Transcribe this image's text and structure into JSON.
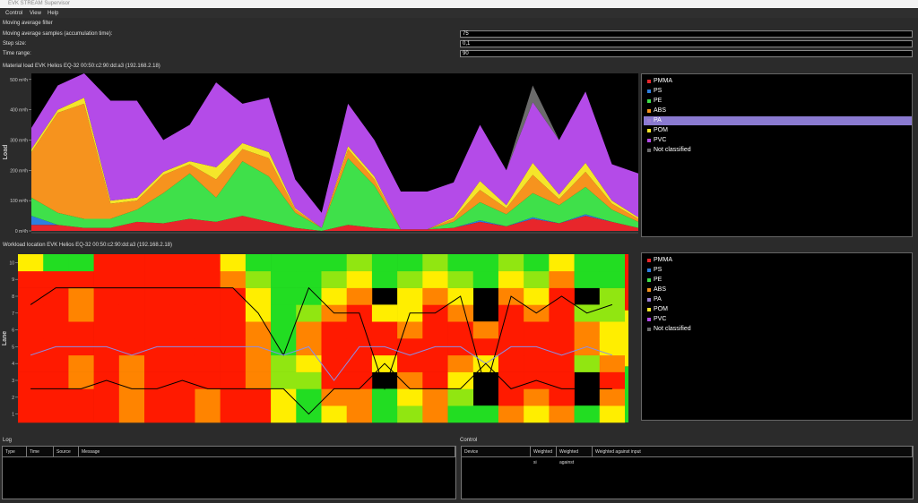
{
  "window": {
    "title": "EVK STREAM Supervisor"
  },
  "menu": [
    "Control",
    "View",
    "Help"
  ],
  "filter": {
    "title": "Moving average filter",
    "fields": [
      {
        "label": "Moving average samples (accumulation time):",
        "value": "75"
      },
      {
        "label": "Step size:",
        "value": "0,1"
      },
      {
        "label": "Time range:",
        "value": "90"
      }
    ]
  },
  "chart_data": [
    {
      "type": "area",
      "stacked": true,
      "title": "Material load EVK Helios EQ-32 00:50:c2:90:dd:a3 (192.168.2.18)",
      "ylabel": "Load",
      "ylim": [
        0,
        520
      ],
      "yticks": [
        {
          "value": 0,
          "label": "0 m³/h"
        },
        {
          "value": 100,
          "label": "100 m³/h"
        },
        {
          "value": 200,
          "label": "200 m³/h"
        },
        {
          "value": 300,
          "label": "300 m³/h"
        },
        {
          "value": 400,
          "label": "400 m³/h"
        },
        {
          "value": 500,
          "label": "500 m³/h"
        }
      ],
      "legend_selected": 4,
      "series": [
        {
          "name": "PMMA",
          "color": "#e8262b",
          "values": [
            20,
            20,
            10,
            10,
            30,
            25,
            40,
            30,
            50,
            30,
            10,
            0,
            20,
            10,
            5,
            5,
            10,
            30,
            15,
            40,
            25,
            50,
            30,
            10
          ]
        },
        {
          "name": "PS",
          "color": "#2d7fe0",
          "values": [
            30,
            0,
            0,
            0,
            0,
            0,
            0,
            0,
            0,
            0,
            0,
            0,
            0,
            0,
            0,
            0,
            0,
            5,
            0,
            5,
            0,
            5,
            0,
            0
          ]
        },
        {
          "name": "PE",
          "color": "#3fe04a",
          "values": [
            60,
            40,
            30,
            30,
            40,
            100,
            150,
            80,
            180,
            150,
            50,
            10,
            220,
            140,
            0,
            0,
            20,
            60,
            40,
            80,
            60,
            90,
            40,
            20
          ]
        },
        {
          "name": "ABS",
          "color": "#f6931e",
          "values": [
            150,
            330,
            380,
            50,
            30,
            60,
            30,
            60,
            40,
            60,
            10,
            0,
            30,
            20,
            0,
            0,
            10,
            40,
            20,
            60,
            20,
            50,
            20,
            10
          ]
        },
        {
          "name": "PA",
          "color": "#9b7fd4",
          "values": [
            0,
            0,
            0,
            0,
            0,
            0,
            0,
            0,
            0,
            0,
            0,
            0,
            0,
            0,
            0,
            0,
            0,
            0,
            0,
            0,
            0,
            0,
            0,
            0
          ]
        },
        {
          "name": "POM",
          "color": "#f5e52a",
          "values": [
            10,
            10,
            20,
            10,
            10,
            10,
            10,
            40,
            20,
            20,
            5,
            0,
            10,
            10,
            0,
            0,
            5,
            30,
            10,
            40,
            15,
            30,
            10,
            5
          ]
        },
        {
          "name": "PVC",
          "color": "#b44be8",
          "values": [
            70,
            80,
            80,
            330,
            320,
            105,
            120,
            280,
            130,
            180,
            95,
            50,
            140,
            120,
            125,
            125,
            115,
            185,
            115,
            200,
            180,
            235,
            120,
            145
          ]
        },
        {
          "name": "Not classified",
          "color": "#6b6b6b",
          "values": [
            0,
            0,
            0,
            0,
            0,
            0,
            0,
            0,
            0,
            0,
            0,
            0,
            0,
            0,
            0,
            0,
            0,
            0,
            0,
            55,
            0,
            0,
            0,
            0
          ]
        }
      ]
    },
    {
      "type": "heatmap",
      "title": "Workload location EVK Helios EQ-32 00:50:c2:90:dd:a3 (192.168.2.18)",
      "ylabel": "Lane",
      "ylim": [
        0.5,
        10.5
      ],
      "yticks": [
        1,
        2,
        3,
        4,
        5,
        6,
        7,
        8,
        9,
        10
      ],
      "zlim": [
        0,
        100
      ],
      "colorscale": [
        "#22dd22",
        "#ffee00",
        "#ff1a00"
      ],
      "z": [
        [
          100,
          100,
          100,
          100,
          100,
          100,
          100,
          100,
          100,
          50
        ],
        [
          100,
          100,
          100,
          100,
          100,
          100,
          100,
          100,
          100,
          0
        ],
        [
          100,
          100,
          75,
          75,
          100,
          100,
          75,
          75,
          100,
          0
        ],
        [
          100,
          100,
          100,
          100,
          100,
          100,
          100,
          100,
          100,
          100
        ],
        [
          75,
          75,
          75,
          75,
          100,
          100,
          100,
          100,
          100,
          100
        ],
        [
          100,
          100,
          100,
          100,
          100,
          100,
          100,
          100,
          100,
          100
        ],
        [
          100,
          100,
          100,
          100,
          100,
          100,
          100,
          100,
          100,
          100
        ],
        [
          75,
          75,
          100,
          100,
          100,
          100,
          100,
          100,
          100,
          100
        ],
        [
          100,
          100,
          100,
          100,
          100,
          100,
          100,
          100,
          75,
          50
        ],
        [
          100,
          100,
          75,
          75,
          75,
          75,
          50,
          50,
          25,
          0
        ],
        [
          50,
          50,
          25,
          25,
          0,
          0,
          0,
          0,
          0,
          0
        ],
        [
          0,
          0,
          25,
          50,
          75,
          75,
          25,
          0,
          0,
          0
        ],
        [
          50,
          75,
          100,
          100,
          100,
          100,
          75,
          50,
          25,
          0
        ],
        [
          75,
          75,
          100,
          100,
          100,
          100,
          100,
          75,
          50,
          25
        ],
        [
          0,
          0,
          null,
          50,
          100,
          100,
          50,
          null,
          0,
          0
        ],
        [
          25,
          50,
          75,
          100,
          100,
          75,
          50,
          50,
          25,
          0
        ],
        [
          75,
          75,
          100,
          100,
          100,
          100,
          100,
          75,
          50,
          25
        ],
        [
          0,
          25,
          50,
          75,
          100,
          100,
          75,
          50,
          25,
          0
        ],
        [
          0,
          null,
          null,
          50,
          100,
          75,
          null,
          null,
          0,
          0
        ],
        [
          75,
          100,
          100,
          100,
          100,
          100,
          100,
          75,
          50,
          25
        ],
        [
          50,
          75,
          100,
          100,
          100,
          100,
          75,
          50,
          25,
          0
        ],
        [
          75,
          100,
          100,
          100,
          100,
          100,
          100,
          100,
          75,
          50
        ],
        [
          0,
          null,
          null,
          25,
          75,
          75,
          25,
          null,
          0,
          0
        ],
        [
          50,
          75,
          100,
          75,
          50,
          50,
          25,
          25,
          0,
          0
        ]
      ],
      "lines": [
        {
          "color": "#000000",
          "values": [
            7.5,
            8.5,
            8.5,
            8.5,
            8.5,
            8.5,
            8.5,
            8.5,
            8.5,
            7,
            4.5,
            8.5,
            7,
            7,
            2.5,
            7,
            7,
            8,
            2.5,
            8,
            7,
            8,
            7,
            7.5
          ]
        },
        {
          "color": "#8a8ee8",
          "values": [
            4.5,
            5,
            5,
            5,
            4.5,
            5,
            5,
            5,
            5,
            5,
            4.5,
            5,
            3,
            5,
            5,
            4.5,
            5,
            5,
            4,
            5,
            5,
            4.5,
            5,
            4.5
          ]
        },
        {
          "color": "#000000",
          "values": [
            2.5,
            2.5,
            2.5,
            3,
            2.5,
            2.5,
            3,
            2.5,
            2.5,
            2.5,
            2.5,
            1,
            2.5,
            2.5,
            4,
            2.5,
            2.5,
            2.5,
            4,
            2.5,
            3,
            2.5,
            2.5,
            2.5
          ]
        }
      ],
      "legend": [
        {
          "name": "PMMA",
          "color": "#e8262b"
        },
        {
          "name": "PS",
          "color": "#2d7fe0"
        },
        {
          "name": "PE",
          "color": "#3fe04a"
        },
        {
          "name": "ABS",
          "color": "#f6931e"
        },
        {
          "name": "PA",
          "color": "#9b7fd4"
        },
        {
          "name": "POM",
          "color": "#f5e52a"
        },
        {
          "name": "PVC",
          "color": "#b44be8"
        },
        {
          "name": "Not classified",
          "color": "#6b6b6b"
        }
      ]
    }
  ],
  "log": {
    "title": "Log",
    "columns": [
      "Type",
      "Time",
      "Source",
      "Message"
    ]
  },
  "control": {
    "title": "Control",
    "columns": [
      "Device",
      "Weighted si",
      "Weighted against",
      "Weighted against input"
    ]
  }
}
